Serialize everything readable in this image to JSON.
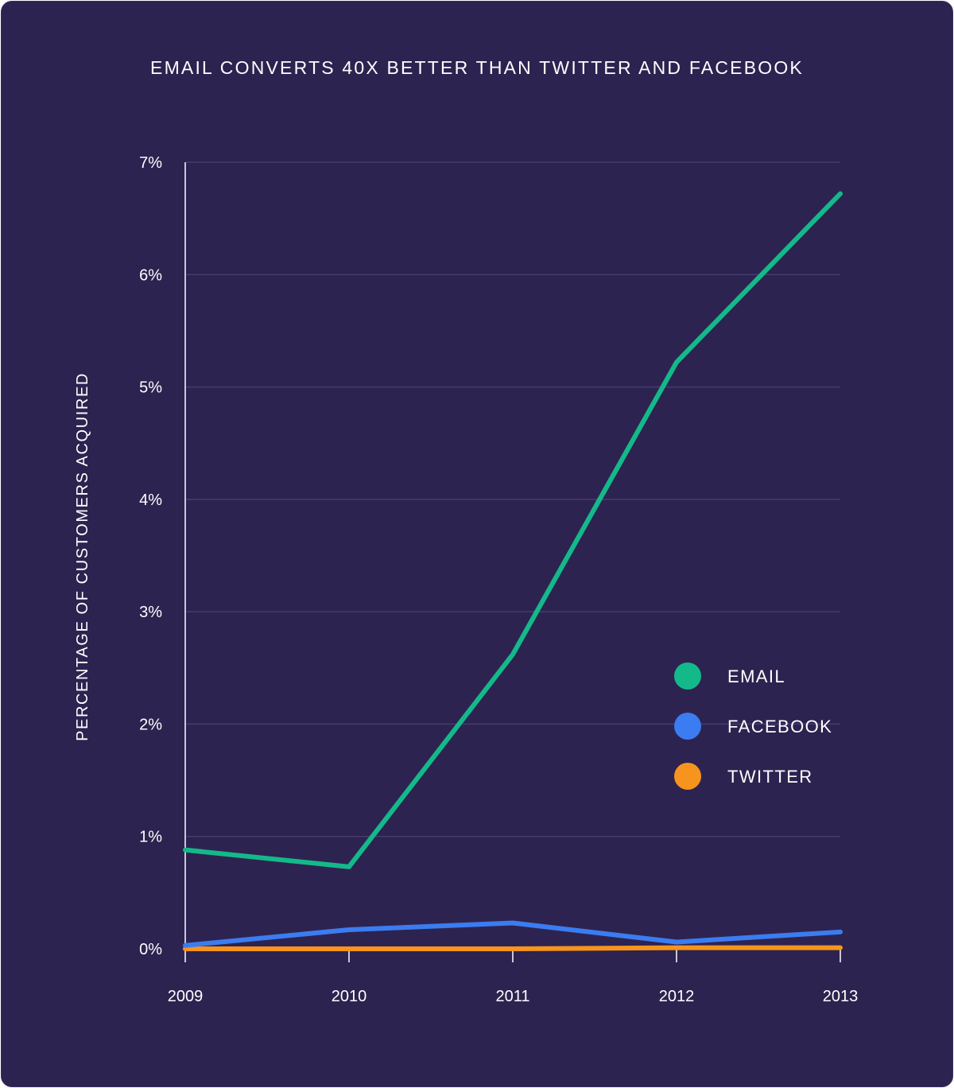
{
  "chart_data": {
    "type": "line",
    "title": "EMAIL CONVERTS 40X BETTER THAN TWITTER AND FACEBOOK",
    "xlabel": "",
    "ylabel": "PERCENTAGE OF CUSTOMERS ACQUIRED",
    "categories": [
      "2009",
      "2010",
      "2011",
      "2012",
      "2013"
    ],
    "ylim": [
      0,
      7
    ],
    "yticks": [
      0,
      1,
      2,
      3,
      4,
      5,
      6,
      7
    ],
    "ytick_labels": [
      "0%",
      "1%",
      "2%",
      "3%",
      "4%",
      "5%",
      "6%",
      "7%"
    ],
    "grid": true,
    "legend_position": "right",
    "series": [
      {
        "name": "EMAIL",
        "color": "#14b98a",
        "values": [
          0.88,
          0.73,
          2.62,
          5.22,
          6.72
        ]
      },
      {
        "name": "FACEBOOK",
        "color": "#3b7cf0",
        "values": [
          0.03,
          0.17,
          0.23,
          0.06,
          0.15
        ]
      },
      {
        "name": "TWITTER",
        "color": "#f7941d",
        "values": [
          0.0,
          0.0,
          0.0,
          0.01,
          0.01
        ]
      }
    ]
  }
}
